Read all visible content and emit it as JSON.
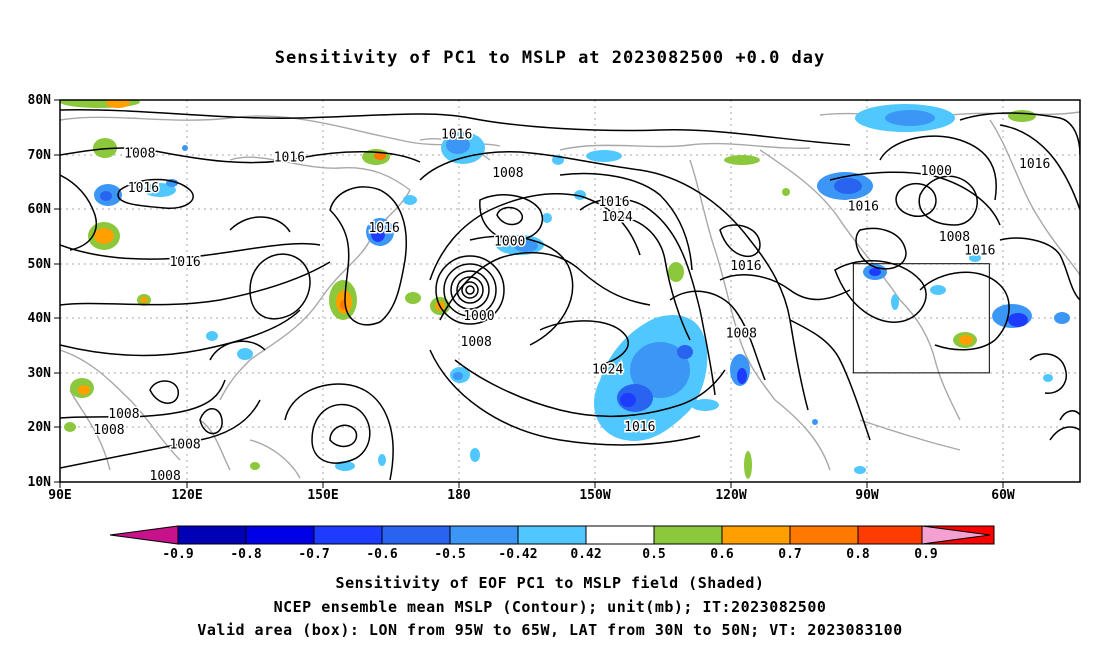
{
  "title": "Sensitivity of PC1 to MSLP at 2023082500 +0.0 day",
  "map": {
    "lon_labels": [
      "90E",
      "120E",
      "150E",
      "180",
      "150W",
      "120W",
      "90W",
      "60W"
    ],
    "lat_labels": [
      "80N",
      "70N",
      "60N",
      "50N",
      "40N",
      "30N",
      "20N",
      "10N"
    ],
    "contour_labels": [
      {
        "text": "1016",
        "lon": 177.5,
        "lat": 73.7
      },
      {
        "text": "1008",
        "lon": 107.6,
        "lat": 70.2
      },
      {
        "text": "1016",
        "lon": 108.4,
        "lat": 63.9
      },
      {
        "text": "1016",
        "lon": 140.6,
        "lat": 69.5
      },
      {
        "text": "1008",
        "lon": -171.2,
        "lat": 66.6
      },
      {
        "text": "1016",
        "lon": -147.8,
        "lat": 61.3
      },
      {
        "text": "1024",
        "lon": -147.1,
        "lat": 58.6
      },
      {
        "text": "1016",
        "lon": 161.5,
        "lat": 56.5
      },
      {
        "text": "1000",
        "lon": -170.8,
        "lat": 54.1
      },
      {
        "text": "1016",
        "lon": 117.6,
        "lat": 50.3
      },
      {
        "text": "1000",
        "lon": -177.6,
        "lat": 40.4
      },
      {
        "text": "1008",
        "lon": -178.2,
        "lat": 35.7
      },
      {
        "text": "1024",
        "lon": -149.2,
        "lat": 30.6
      },
      {
        "text": "1008",
        "lon": -119.7,
        "lat": 37.2
      },
      {
        "text": "1016",
        "lon": -142.1,
        "lat": 20.1
      },
      {
        "text": "1016",
        "lon": -118.7,
        "lat": 49.6
      },
      {
        "text": "1000",
        "lon": -76.7,
        "lat": 67.0
      },
      {
        "text": "1016",
        "lon": -92.8,
        "lat": 60.5
      },
      {
        "text": "1008",
        "lon": -72.7,
        "lat": 54.9
      },
      {
        "text": "1016",
        "lon": -67.1,
        "lat": 52.4
      },
      {
        "text": "1016",
        "lon": -55.0,
        "lat": 68.3
      },
      {
        "text": "1008",
        "lon": 104.1,
        "lat": 22.5
      },
      {
        "text": "1008",
        "lon": 100.8,
        "lat": 19.5
      },
      {
        "text": "1008",
        "lon": 117.6,
        "lat": 16.9
      },
      {
        "text": "1008",
        "lon": 113.2,
        "lat": 11.1
      }
    ],
    "valid_box": {
      "lon_min": -95,
      "lon_max": -65,
      "lat_min": 30,
      "lat_max": 50
    }
  },
  "colorbar": {
    "labels": [
      "-0.9",
      "-0.8",
      "-0.7",
      "-0.6",
      "-0.5",
      "-0.42",
      "0.42",
      "0.5",
      "0.6",
      "0.7",
      "0.8",
      "0.9"
    ],
    "colors": [
      "#0000b4",
      "#0000e6",
      "#1e3cff",
      "#2864f0",
      "#3c96f5",
      "#50c8ff",
      "#ffffff",
      "#8cc83c",
      "#ffa000",
      "#ff7800",
      "#ff3c00",
      "#ff0000"
    ],
    "low_end_color": "#c8128c",
    "high_end_color": "#f4a0d0"
  },
  "captions": {
    "line1": "Sensitivity of EOF PC1 to MSLP field (Shaded)",
    "line2": "NCEP ensemble mean MSLP (Contour); unit(mb); IT:2023082500",
    "line3": "Valid area (box): LON from 95W to 65W, LAT from 30N to 50N; VT: 2023083100"
  }
}
